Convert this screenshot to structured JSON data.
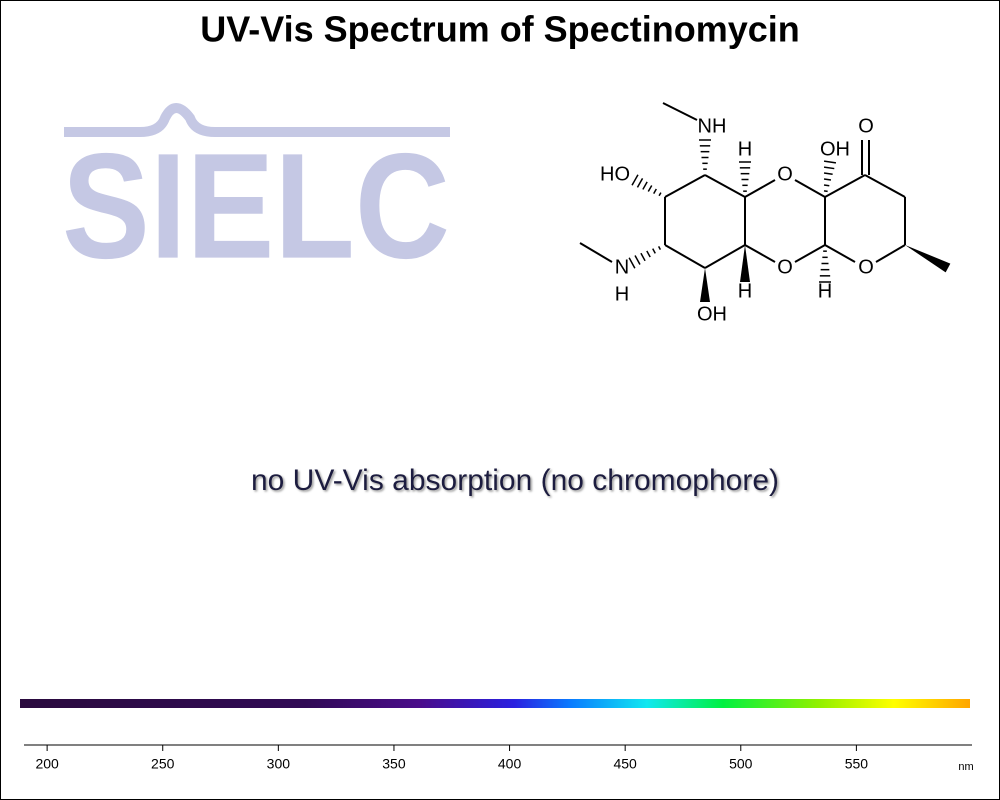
{
  "logo": "SIELC",
  "chart_data": {
    "type": "spectrum",
    "title": "UV-Vis Spectrum of Spectinomycin",
    "annotation": "no UV-Vis absorption (no chromophore)",
    "xlabel": "nm",
    "xlim": [
      190,
      600
    ],
    "xticks": [
      200,
      250,
      300,
      350,
      400,
      450,
      500,
      550
    ]
  },
  "molecule": {
    "labels": [
      "NH",
      "HO",
      "H",
      "OH",
      "O",
      "O",
      "O",
      "O",
      "N",
      "H",
      "H",
      "H",
      "OH"
    ]
  }
}
